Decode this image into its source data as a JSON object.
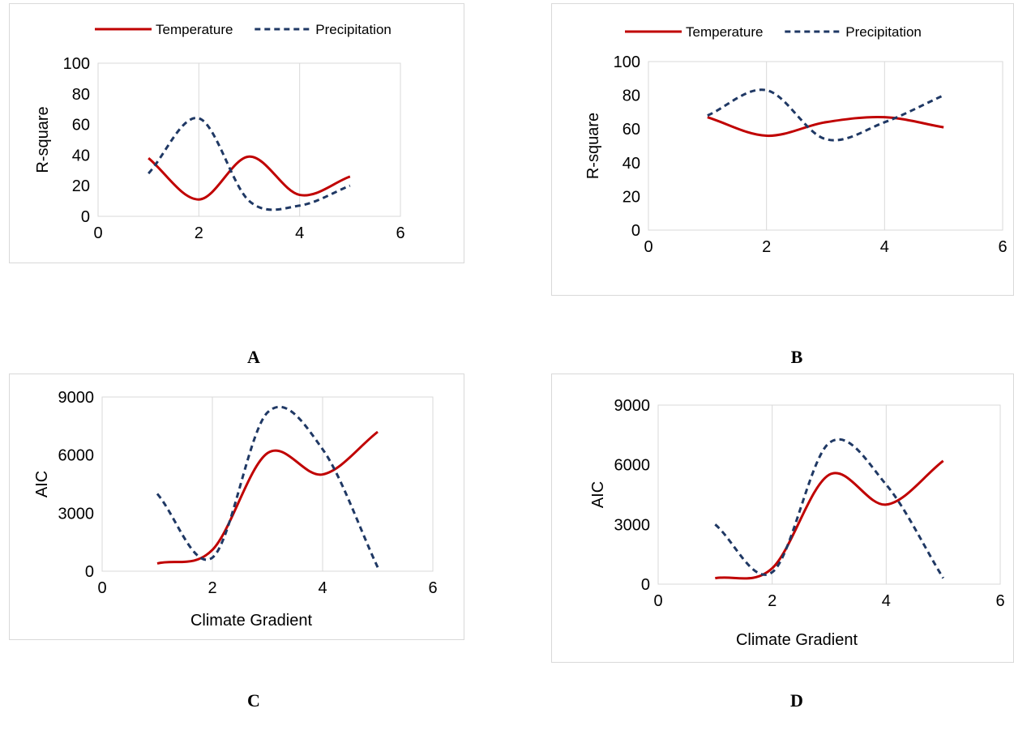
{
  "figure_labels": [
    "A",
    "B",
    "C",
    "D"
  ],
  "colors": {
    "temperature": "#c00000",
    "precipitation": "#1f3864",
    "grid": "#d9d9d9"
  },
  "chart_data": [
    {
      "type": "line",
      "panel": "A",
      "ylabel": "R-square",
      "xlabel": "",
      "xlim": [
        0,
        6
      ],
      "ylim": [
        0,
        100
      ],
      "xticks": [
        0,
        2,
        4,
        6
      ],
      "yticks": [
        0,
        20,
        40,
        60,
        80,
        100
      ],
      "grid": "vertical",
      "legend": "top",
      "x": [
        1,
        2,
        3,
        4,
        5
      ],
      "series": [
        {
          "name": "Temperature",
          "style": "solid",
          "values": [
            38,
            11,
            39,
            14,
            26
          ]
        },
        {
          "name": "Precipitation",
          "style": "dashed",
          "values": [
            28,
            64,
            10,
            7,
            20
          ]
        }
      ]
    },
    {
      "type": "line",
      "panel": "B",
      "ylabel": "R-square",
      "xlabel": "",
      "xlim": [
        0,
        6
      ],
      "ylim": [
        0,
        100
      ],
      "xticks": [
        0,
        2,
        4,
        6
      ],
      "yticks": [
        0,
        20,
        40,
        60,
        80,
        100
      ],
      "grid": "vertical",
      "legend": "top",
      "x": [
        1,
        2,
        3,
        4,
        5
      ],
      "series": [
        {
          "name": "Temperature",
          "style": "solid",
          "values": [
            67,
            56,
            64,
            67,
            61
          ]
        },
        {
          "name": "Precipitation",
          "style": "dashed",
          "values": [
            68,
            83,
            54,
            64,
            80
          ]
        }
      ]
    },
    {
      "type": "line",
      "panel": "C",
      "ylabel": "AIC",
      "xlabel": "Climate Gradient",
      "xlim": [
        0,
        6
      ],
      "ylim": [
        0,
        9000
      ],
      "xticks": [
        0,
        2,
        4,
        6
      ],
      "yticks": [
        0,
        3000,
        6000,
        9000
      ],
      "grid": "vertical",
      "legend": "none",
      "x": [
        1,
        2,
        3,
        4,
        5
      ],
      "series": [
        {
          "name": "Temperature",
          "style": "solid",
          "values": [
            400,
            1100,
            6100,
            5000,
            7200
          ]
        },
        {
          "name": "Precipitation",
          "style": "dashed",
          "values": [
            4000,
            700,
            8200,
            6300,
            200
          ]
        }
      ]
    },
    {
      "type": "line",
      "panel": "D",
      "ylabel": "AIC",
      "xlabel": "Climate Gradient",
      "xlim": [
        0,
        6
      ],
      "ylim": [
        0,
        9000
      ],
      "xticks": [
        0,
        2,
        4,
        6
      ],
      "yticks": [
        0,
        3000,
        6000,
        9000
      ],
      "grid": "vertical",
      "legend": "none",
      "x": [
        1,
        2,
        3,
        4,
        5
      ],
      "series": [
        {
          "name": "Temperature",
          "style": "solid",
          "values": [
            300,
            800,
            5500,
            4000,
            6200
          ]
        },
        {
          "name": "Precipitation",
          "style": "dashed",
          "values": [
            3000,
            600,
            7100,
            5000,
            300
          ]
        }
      ]
    }
  ]
}
